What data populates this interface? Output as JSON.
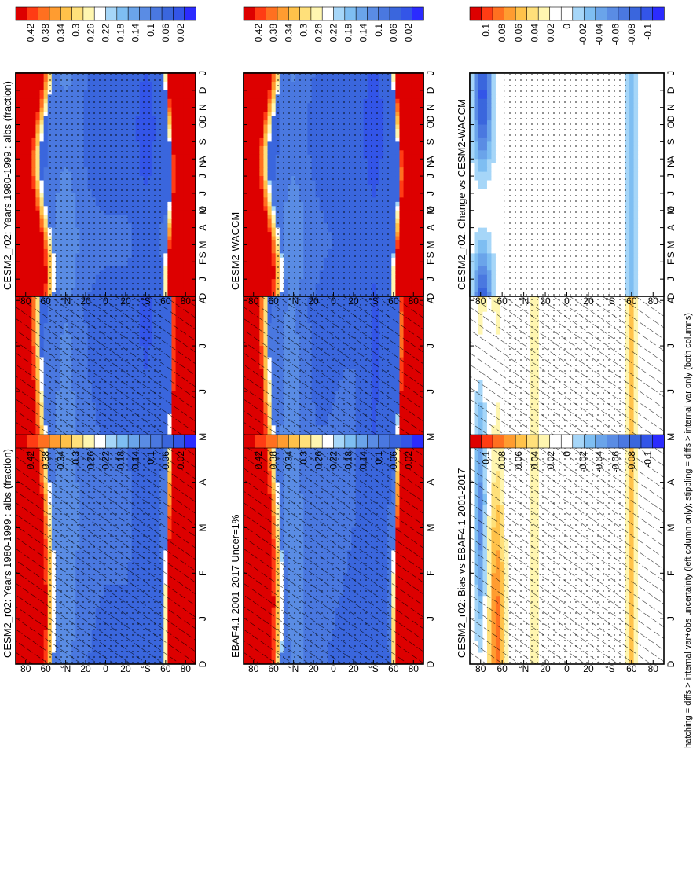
{
  "footnote": "hatching = diffs > internal var+obs uncertainty (left column only); stippling = diffs > internal var only (both columns)",
  "months": [
    "D",
    "J",
    "F",
    "M",
    "A",
    "M",
    "J",
    "J",
    "A",
    "S",
    "O",
    "N",
    "D",
    "J"
  ],
  "lat_labels": [
    "80",
    "60",
    "°N",
    "20",
    "0",
    "20",
    "°S",
    "60",
    "80"
  ],
  "colorbars": {
    "abs": {
      "colors": [
        "#2b2bff",
        "#3355e8",
        "#3a66dd",
        "#4a78e0",
        "#5a8ce4",
        "#6aa4ea",
        "#7ebef2",
        "#a6d6f8",
        "#ffffff",
        "#fff6b0",
        "#ffe07a",
        "#ffc24a",
        "#ff9c30",
        "#ff7020",
        "#ff3c14",
        "#dd0000"
      ],
      "labels": [
        "0.42",
        "0.38",
        "0.34",
        "0.3",
        "0.26",
        "0.22",
        "0.18",
        "0.14",
        "0.1",
        "0.06",
        "0.02"
      ]
    },
    "diff": {
      "colors": [
        "#2b2bff",
        "#3355e8",
        "#3a66dd",
        "#4a78e0",
        "#5a8ce4",
        "#6aa4ea",
        "#7ebef2",
        "#a6d6f8",
        "#ffffff",
        "#ffffff",
        "#fff6b0",
        "#ffe07a",
        "#ffc24a",
        "#ff9c30",
        "#ff7020",
        "#ff3c14",
        "#dd0000"
      ],
      "labels": [
        "0.1",
        "0.08",
        "0.06",
        "0.04",
        "0.02",
        "0",
        "-0.02",
        "-0.04",
        "-0.06",
        "-0.08",
        "-0.1"
      ]
    }
  },
  "chart_data": [
    {
      "type": "heatmap",
      "title": "CESM2_r02: Years 1980-1999 : albs (fraction)",
      "x": [
        "D",
        "J",
        "F",
        "M",
        "A",
        "M",
        "J",
        "J",
        "A",
        "S",
        "O",
        "N",
        "D",
        "J"
      ],
      "y": [
        "80",
        "60",
        "°N",
        "20",
        "0",
        "20",
        "°S",
        "60",
        "80"
      ],
      "colorbar": "abs",
      "field": "model",
      "hatching": true,
      "stippling": true
    },
    {
      "type": "heatmap",
      "title": "CESM2_r02: Years 1980-1999 : albs (fraction)",
      "x": [
        "D",
        "J",
        "F",
        "M",
        "A",
        "M",
        "J",
        "J",
        "A",
        "S",
        "O",
        "N",
        "D",
        "J"
      ],
      "y": [
        "80",
        "60",
        "°N",
        "20",
        "0",
        "20",
        "°S",
        "60",
        "80"
      ],
      "colorbar": "abs",
      "field": "model",
      "hatching": false,
      "stippling": true
    },
    {
      "type": "heatmap",
      "title": "EBAF4.1 2001-2017 Uncer=1%",
      "x": [
        "D",
        "J",
        "F",
        "M",
        "A",
        "M",
        "J",
        "J",
        "A",
        "S",
        "O",
        "N",
        "D",
        "J"
      ],
      "y": [
        "80",
        "60",
        "°N",
        "20",
        "0",
        "20",
        "°S",
        "60",
        "80"
      ],
      "colorbar": "abs",
      "field": "obs",
      "hatching": true,
      "stippling": true
    },
    {
      "type": "heatmap",
      "title": "CESM2-WACCM",
      "x": [
        "D",
        "J",
        "F",
        "M",
        "A",
        "M",
        "J",
        "J",
        "A",
        "S",
        "O",
        "N",
        "D",
        "J"
      ],
      "y": [
        "80",
        "60",
        "°N",
        "20",
        "0",
        "20",
        "°S",
        "60",
        "80"
      ],
      "colorbar": "abs",
      "field": "model2",
      "hatching": false,
      "stippling": true
    },
    {
      "type": "heatmap",
      "title": "CESM2_r02: Bias vs EBAF4.1 2001-2017",
      "x": [
        "D",
        "J",
        "F",
        "M",
        "A",
        "M",
        "J",
        "J",
        "A",
        "S",
        "O",
        "N",
        "D",
        "J"
      ],
      "y": [
        "80",
        "60",
        "°N",
        "20",
        "0",
        "20",
        "°S",
        "60",
        "80"
      ],
      "colorbar": "diff",
      "field": "bias",
      "hatching": true,
      "stippling": true
    },
    {
      "type": "heatmap",
      "title": "CESM2_r02: Change vs CESM2-WACCM",
      "x": [
        "D",
        "J",
        "F",
        "M",
        "A",
        "M",
        "J",
        "J",
        "A",
        "S",
        "O",
        "N",
        "D",
        "J"
      ],
      "y": [
        "80",
        "60",
        "°N",
        "20",
        "0",
        "20",
        "°S",
        "60",
        "80"
      ],
      "colorbar": "diff",
      "field": "change",
      "hatching": false,
      "stippling": true
    }
  ]
}
